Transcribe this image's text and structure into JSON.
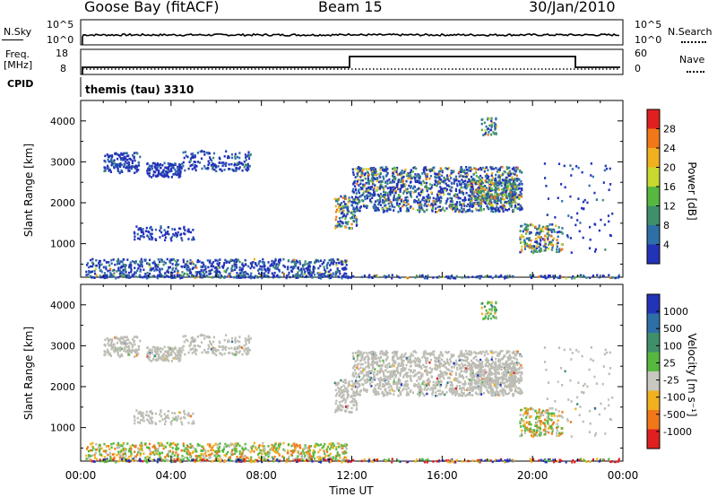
{
  "header": {
    "station": "Goose Bay (fitACF)",
    "beam": "Beam 15",
    "date": "30/Jan/2010"
  },
  "top_panels": {
    "nsky_label": "N.Sky",
    "nsky_ticks": [
      "10^5",
      "10^0"
    ],
    "nsearch_label": "N.Search",
    "nsearch_ticks": [
      "10^5",
      "10^0"
    ],
    "freq_label_line1": "Freq.",
    "freq_label_line2": "[MHz]",
    "freq_ticks": [
      "18",
      "8"
    ],
    "nave_label": "Nave",
    "nave_ticks": [
      "60",
      "0"
    ],
    "cpid_label": "CPID",
    "cpid_value": "themis (tau) 3310"
  },
  "colors": {
    "power_scale": [
      "#2333b8",
      "#2e6fa8",
      "#3f8f6a",
      "#57b840",
      "#c8d830",
      "#f0b020",
      "#f07818",
      "#e02020"
    ],
    "velocity_scale": [
      "#2333b8",
      "#2e6fa8",
      "#3f8f6a",
      "#57b840",
      "#c8c8c0",
      "#f0b020",
      "#f07818",
      "#e02020"
    ],
    "ground_scatter": "#bdbdb5"
  },
  "chart_data": [
    {
      "type": "heatmap",
      "panel": "power",
      "ylabel": "Slant Range [km]",
      "ylim": [
        180,
        4500
      ],
      "y_ticks": [
        "4000",
        "3000",
        "2000",
        "1000"
      ],
      "x_ticks": [
        "00:00",
        "04:00",
        "08:00",
        "12:00",
        "16:00",
        "20:00",
        "00:00"
      ],
      "colorbar_label": "Power [dB]",
      "colorbar_ticks": [
        "28",
        "24",
        "20",
        "16",
        "12",
        "8",
        "4"
      ],
      "colorbar_range": [
        0,
        30
      ]
    },
    {
      "type": "heatmap",
      "panel": "velocity",
      "ylabel": "Slant Range [km]",
      "xlabel": "Time UT",
      "ylim": [
        180,
        4500
      ],
      "y_ticks": [
        "4000",
        "3000",
        "2000",
        "1000"
      ],
      "x_ticks": [
        "00:00",
        "04:00",
        "08:00",
        "12:00",
        "16:00",
        "20:00",
        "00:00"
      ],
      "colorbar_label": "Velocity [m s⁻¹]",
      "colorbar_ticks": [
        "1000",
        "500",
        "100",
        "25",
        "-25",
        "-100",
        "-500",
        "-1000"
      ]
    }
  ]
}
